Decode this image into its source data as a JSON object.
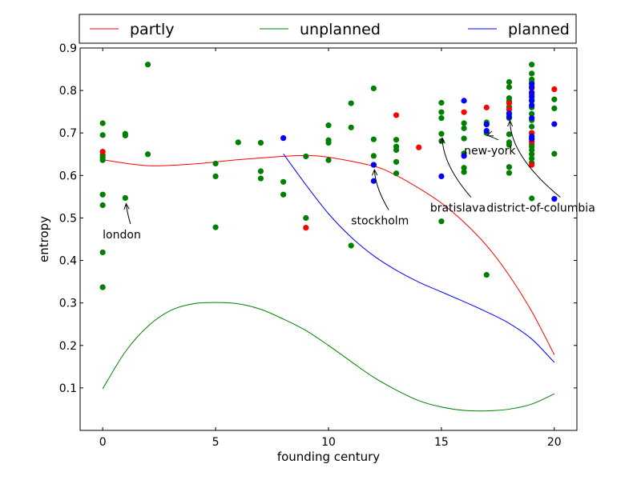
{
  "chart_data": {
    "type": "scatter",
    "xlabel": "founding century",
    "ylabel": "entropy",
    "xlim": [
      -1,
      21
    ],
    "ylim": [
      0.0,
      0.9
    ],
    "xticks": [
      0,
      5,
      10,
      15,
      20
    ],
    "yticks": [
      0.1,
      0.2,
      0.3,
      0.4,
      0.5,
      0.6,
      0.7,
      0.8,
      0.9
    ],
    "grid": false,
    "legend_position": "top",
    "legend": [
      {
        "name": "partly",
        "color": "#ff0000"
      },
      {
        "name": "unplanned",
        "color": "#008000"
      },
      {
        "name": "planned",
        "color": "#0000ff"
      }
    ],
    "series": [
      {
        "name": "partly",
        "color": "#ff0000",
        "points": [
          [
            0,
            0.656
          ],
          [
            9,
            0.477
          ],
          [
            13,
            0.742
          ],
          [
            14,
            0.666
          ],
          [
            16,
            0.749
          ],
          [
            17,
            0.76
          ],
          [
            18,
            0.755
          ],
          [
            18,
            0.77
          ],
          [
            19,
            0.625
          ],
          [
            19,
            0.68
          ],
          [
            19,
            0.7
          ],
          [
            19,
            0.79
          ],
          [
            19,
            0.805
          ],
          [
            20,
            0.803
          ]
        ],
        "curve": [
          [
            0,
            0.637
          ],
          [
            2,
            0.623
          ],
          [
            4,
            0.627
          ],
          [
            6,
            0.637
          ],
          [
            8,
            0.645
          ],
          [
            9,
            0.647
          ],
          [
            10,
            0.643
          ],
          [
            12,
            0.622
          ],
          [
            13,
            0.6
          ],
          [
            14,
            0.57
          ],
          [
            15,
            0.535
          ],
          [
            16,
            0.49
          ],
          [
            17,
            0.435
          ],
          [
            18,
            0.365
          ],
          [
            19,
            0.28
          ],
          [
            20,
            0.178
          ]
        ]
      },
      {
        "name": "unplanned",
        "color": "#008000",
        "points": [
          [
            0,
            0.723
          ],
          [
            0,
            0.695
          ],
          [
            0,
            0.648
          ],
          [
            0,
            0.643
          ],
          [
            0,
            0.636
          ],
          [
            0,
            0.555
          ],
          [
            0,
            0.53
          ],
          [
            0,
            0.419
          ],
          [
            0,
            0.337
          ],
          [
            1,
            0.698
          ],
          [
            1,
            0.694
          ],
          [
            1,
            0.547
          ],
          [
            2,
            0.861
          ],
          [
            2,
            0.65
          ],
          [
            5,
            0.628
          ],
          [
            5,
            0.598
          ],
          [
            5,
            0.478
          ],
          [
            6,
            0.678
          ],
          [
            7,
            0.677
          ],
          [
            7,
            0.61
          ],
          [
            7,
            0.593
          ],
          [
            8,
            0.585
          ],
          [
            8,
            0.555
          ],
          [
            9,
            0.645
          ],
          [
            9,
            0.5
          ],
          [
            10,
            0.718
          ],
          [
            10,
            0.683
          ],
          [
            10,
            0.677
          ],
          [
            10,
            0.636
          ],
          [
            11,
            0.77
          ],
          [
            11,
            0.713
          ],
          [
            11,
            0.435
          ],
          [
            12,
            0.805
          ],
          [
            12,
            0.685
          ],
          [
            12,
            0.646
          ],
          [
            12,
            0.625
          ],
          [
            13,
            0.684
          ],
          [
            13,
            0.668
          ],
          [
            13,
            0.66
          ],
          [
            13,
            0.632
          ],
          [
            13,
            0.605
          ],
          [
            15,
            0.771
          ],
          [
            15,
            0.749
          ],
          [
            15,
            0.735
          ],
          [
            15,
            0.698
          ],
          [
            15,
            0.681
          ],
          [
            15,
            0.492
          ],
          [
            16,
            0.723
          ],
          [
            16,
            0.711
          ],
          [
            16,
            0.687
          ],
          [
            16,
            0.652
          ],
          [
            16,
            0.618
          ],
          [
            16,
            0.608
          ],
          [
            17,
            0.725
          ],
          [
            17,
            0.721
          ],
          [
            17,
            0.7
          ],
          [
            17,
            0.366
          ],
          [
            18,
            0.82
          ],
          [
            18,
            0.808
          ],
          [
            18,
            0.782
          ],
          [
            18,
            0.775
          ],
          [
            18,
            0.761
          ],
          [
            18,
            0.745
          ],
          [
            18,
            0.735
          ],
          [
            18,
            0.697
          ],
          [
            18,
            0.678
          ],
          [
            18,
            0.672
          ],
          [
            18,
            0.62
          ],
          [
            18,
            0.606
          ],
          [
            19,
            0.861
          ],
          [
            19,
            0.84
          ],
          [
            19,
            0.826
          ],
          [
            19,
            0.82
          ],
          [
            19,
            0.795
          ],
          [
            19,
            0.775
          ],
          [
            19,
            0.76
          ],
          [
            19,
            0.745
          ],
          [
            19,
            0.73
          ],
          [
            19,
            0.715
          ],
          [
            19,
            0.7
          ],
          [
            19,
            0.686
          ],
          [
            19,
            0.674
          ],
          [
            19,
            0.668
          ],
          [
            19,
            0.66
          ],
          [
            19,
            0.65
          ],
          [
            19,
            0.64
          ],
          [
            19,
            0.63
          ],
          [
            19,
            0.546
          ],
          [
            20,
            0.779
          ],
          [
            20,
            0.758
          ],
          [
            20,
            0.651
          ]
        ],
        "curve": [
          [
            0,
            0.098
          ],
          [
            1,
            0.185
          ],
          [
            2,
            0.245
          ],
          [
            3,
            0.282
          ],
          [
            4,
            0.298
          ],
          [
            5,
            0.301
          ],
          [
            6,
            0.298
          ],
          [
            7,
            0.285
          ],
          [
            8,
            0.262
          ],
          [
            9,
            0.235
          ],
          [
            10,
            0.2
          ],
          [
            11,
            0.162
          ],
          [
            12,
            0.125
          ],
          [
            13,
            0.095
          ],
          [
            14,
            0.07
          ],
          [
            15,
            0.055
          ],
          [
            16,
            0.047
          ],
          [
            17,
            0.046
          ],
          [
            18,
            0.05
          ],
          [
            19,
            0.062
          ],
          [
            20,
            0.086
          ]
        ]
      },
      {
        "name": "planned",
        "color": "#0000ff",
        "points": [
          [
            8,
            0.688
          ],
          [
            12,
            0.625
          ],
          [
            12,
            0.587
          ],
          [
            15,
            0.598
          ],
          [
            16,
            0.776
          ],
          [
            16,
            0.646
          ],
          [
            17,
            0.72
          ],
          [
            17,
            0.705
          ],
          [
            18,
            0.746
          ],
          [
            18,
            0.738
          ],
          [
            19,
            0.815
          ],
          [
            19,
            0.808
          ],
          [
            19,
            0.795
          ],
          [
            19,
            0.785
          ],
          [
            19,
            0.777
          ],
          [
            19,
            0.765
          ],
          [
            19,
            0.735
          ],
          [
            19,
            0.692
          ],
          [
            19,
            0.686
          ],
          [
            20,
            0.721
          ],
          [
            20,
            0.545
          ]
        ],
        "curve": [
          [
            8,
            0.651
          ],
          [
            9,
            0.578
          ],
          [
            10,
            0.51
          ],
          [
            11,
            0.455
          ],
          [
            12,
            0.411
          ],
          [
            13,
            0.377
          ],
          [
            14,
            0.349
          ],
          [
            15,
            0.326
          ],
          [
            16,
            0.303
          ],
          [
            17,
            0.279
          ],
          [
            18,
            0.252
          ],
          [
            19,
            0.215
          ],
          [
            20,
            0.16
          ]
        ]
      }
    ],
    "annotations": [
      {
        "label": "london",
        "point": [
          1,
          0.545
        ],
        "text_at": [
          0,
          0.452
        ]
      },
      {
        "label": "stockholm",
        "point": [
          12,
          0.625
        ],
        "text_at": [
          11,
          0.485
        ]
      },
      {
        "label": "bratislava",
        "point": [
          15,
          0.7
        ],
        "text_at": [
          14.5,
          0.515
        ]
      },
      {
        "label": "new-york",
        "point": [
          17,
          0.705
        ],
        "text_at": [
          16,
          0.65
        ]
      },
      {
        "label": "district-of-columbia",
        "point": [
          18,
          0.74
        ],
        "text_at": [
          17,
          0.515
        ]
      }
    ]
  }
}
